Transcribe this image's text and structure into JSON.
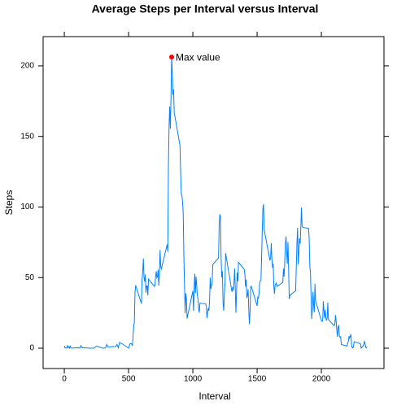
{
  "chart_data": {
    "type": "line",
    "title": "Average Steps per Interval versus Interval",
    "x_label": "Interval",
    "y_label": "Steps",
    "annotation": "Max value",
    "annotation_color": "#ff0000",
    "xlim": [
      -165,
      2487
    ],
    "xticks": [
      0,
      500,
      1000,
      1500,
      2000
    ],
    "ylim": [
      -14.4,
      220.7
    ],
    "yticks": [
      0,
      50,
      100,
      150,
      200
    ],
    "x": [
      0,
      5,
      10,
      15,
      20,
      25,
      30,
      35,
      40,
      45,
      50,
      55,
      100,
      110,
      120,
      125,
      130,
      140,
      150,
      200,
      230,
      250,
      300,
      320,
      330,
      340,
      400,
      410,
      420,
      430,
      440,
      450,
      500,
      510,
      520,
      530,
      540,
      545,
      550,
      555,
      600,
      605,
      610,
      615,
      620,
      625,
      630,
      635,
      640,
      645,
      650,
      655,
      700,
      705,
      710,
      715,
      720,
      725,
      730,
      735,
      740,
      745,
      750,
      755,
      800,
      805,
      810,
      815,
      820,
      825,
      830,
      835,
      840,
      845,
      850,
      855,
      900,
      905,
      910,
      915,
      920,
      925,
      930,
      935,
      940,
      945,
      950,
      955,
      1000,
      1005,
      1010,
      1015,
      1020,
      1025,
      1030,
      1035,
      1040,
      1045,
      1050,
      1055,
      1100,
      1105,
      1110,
      1115,
      1120,
      1125,
      1130,
      1135,
      1140,
      1145,
      1150,
      1155,
      1200,
      1205,
      1210,
      1215,
      1220,
      1225,
      1230,
      1235,
      1240,
      1245,
      1250,
      1255,
      1300,
      1305,
      1310,
      1315,
      1320,
      1325,
      1330,
      1335,
      1340,
      1345,
      1350,
      1355,
      1400,
      1405,
      1410,
      1415,
      1420,
      1425,
      1430,
      1435,
      1440,
      1445,
      1450,
      1455,
      1500,
      1505,
      1510,
      1515,
      1520,
      1525,
      1530,
      1535,
      1540,
      1545,
      1550,
      1555,
      1600,
      1605,
      1610,
      1615,
      1620,
      1625,
      1630,
      1635,
      1640,
      1645,
      1650,
      1655,
      1700,
      1705,
      1710,
      1715,
      1720,
      1725,
      1730,
      1735,
      1740,
      1745,
      1750,
      1755,
      1800,
      1805,
      1810,
      1815,
      1820,
      1825,
      1830,
      1835,
      1840,
      1845,
      1850,
      1855,
      1900,
      1905,
      1910,
      1915,
      1920,
      1925,
      1930,
      1935,
      1940,
      1945,
      1950,
      1955,
      2000,
      2005,
      2010,
      2015,
      2020,
      2025,
      2030,
      2035,
      2040,
      2045,
      2050,
      2055,
      2100,
      2105,
      2110,
      2115,
      2120,
      2125,
      2130,
      2135,
      2140,
      2145,
      2150,
      2155,
      2200,
      2205,
      2210,
      2215,
      2220,
      2225,
      2230,
      2235,
      2240,
      2245,
      2250,
      2255,
      2300,
      2305,
      2310,
      2315,
      2320,
      2325,
      2330,
      2335,
      2340,
      2345,
      2350,
      2355
    ],
    "series": [
      {
        "name": "Steps",
        "color": "#0080ff",
        "values": [
          1.7,
          0.3,
          0.1,
          0.2,
          0.1,
          2.1,
          0.5,
          0.9,
          0,
          1.5,
          0.3,
          0.1,
          0.3,
          0.2,
          0,
          1.1,
          1.8,
          0.2,
          0.3,
          0,
          0,
          1.5,
          0,
          0.2,
          2.6,
          0.9,
          1.2,
          2.6,
          0.3,
          4.1,
          3.5,
          3.1,
          0,
          3,
          3.3,
          2.1,
          16,
          18.3,
          39.5,
          44.5,
          31.5,
          49.3,
          53.8,
          63.5,
          50,
          47.1,
          52.2,
          39.3,
          44,
          44.2,
          37.4,
          49,
          43.8,
          44.4,
          50.5,
          54.5,
          49.9,
          50.9,
          55.7,
          44.3,
          52.3,
          69.5,
          57.8,
          56.2,
          73.4,
          68.2,
          129.4,
          157.5,
          171.2,
          155.4,
          177.3,
          206.2,
          195.9,
          179.6,
          183.4,
          167,
          143.5,
          124,
          109.1,
          108.1,
          103.7,
          95.9,
          66.2,
          45.2,
          24.8,
          38.8,
          35,
          21,
          40.6,
          26.5,
          42.4,
          52.7,
          38.9,
          50.8,
          44.3,
          37.4,
          34.7,
          28.3,
          25.1,
          31.9,
          31.4,
          29.7,
          21.3,
          25.5,
          28.4,
          26.5,
          33.4,
          50,
          42,
          44.6,
          46,
          59.2,
          63.9,
          87.7,
          94.8,
          92.8,
          63.4,
          50.2,
          54.5,
          32.4,
          26.5,
          37.7,
          45,
          67.3,
          42.3,
          39.9,
          43.3,
          41,
          46.2,
          56.4,
          42.8,
          25.1,
          40,
          53.5,
          47.3,
          60.8,
          55.8,
          51.9,
          43.6,
          48.7,
          35.5,
          37.5,
          41.8,
          27.5,
          17.1,
          26.1,
          43.6,
          43.8,
          30,
          36.1,
          35.5,
          38.8,
          46,
          47.8,
          48.1,
          65.3,
          82.9,
          98.7,
          102.1,
          84,
          62.1,
          64.1,
          74.5,
          63.2,
          56.9,
          59.8,
          43.9,
          38.6,
          44.7,
          45.5,
          46.2,
          43.7,
          46.6,
          56.3,
          50.7,
          61.2,
          73.4,
          79.1,
          68.9,
          59.7,
          75.1,
          56.5,
          34.8,
          37.5,
          40.7,
          58,
          74.7,
          85.3,
          59.3,
          67.8,
          77.7,
          74.2,
          85.3,
          99.5,
          86.6,
          85.6,
          84.9,
          77.8,
          58,
          53.4,
          36.3,
          20.7,
          27.4,
          40,
          30.2,
          25.5,
          45.7,
          33.5,
          19.6,
          19,
          19.3,
          33.3,
          26.8,
          21.2,
          27.3,
          21.3,
          19.5,
          21.3,
          32.3,
          20.2,
          15.9,
          17.2,
          23.5,
          19.2,
          12.5,
          8,
          14.7,
          16.3,
          8.7,
          7.8,
          8.1,
          2.6,
          1.5,
          3.7,
          4.8,
          8.5,
          7.1,
          8.7,
          9.8,
          2.2,
          0.3,
          0.1,
          1.6,
          4.6,
          3.3,
          2.8,
          0,
          0.8,
          1,
          1.6,
          2.6,
          4.7,
          3.3,
          0.6,
          0.2,
          1.1
        ]
      }
    ]
  }
}
